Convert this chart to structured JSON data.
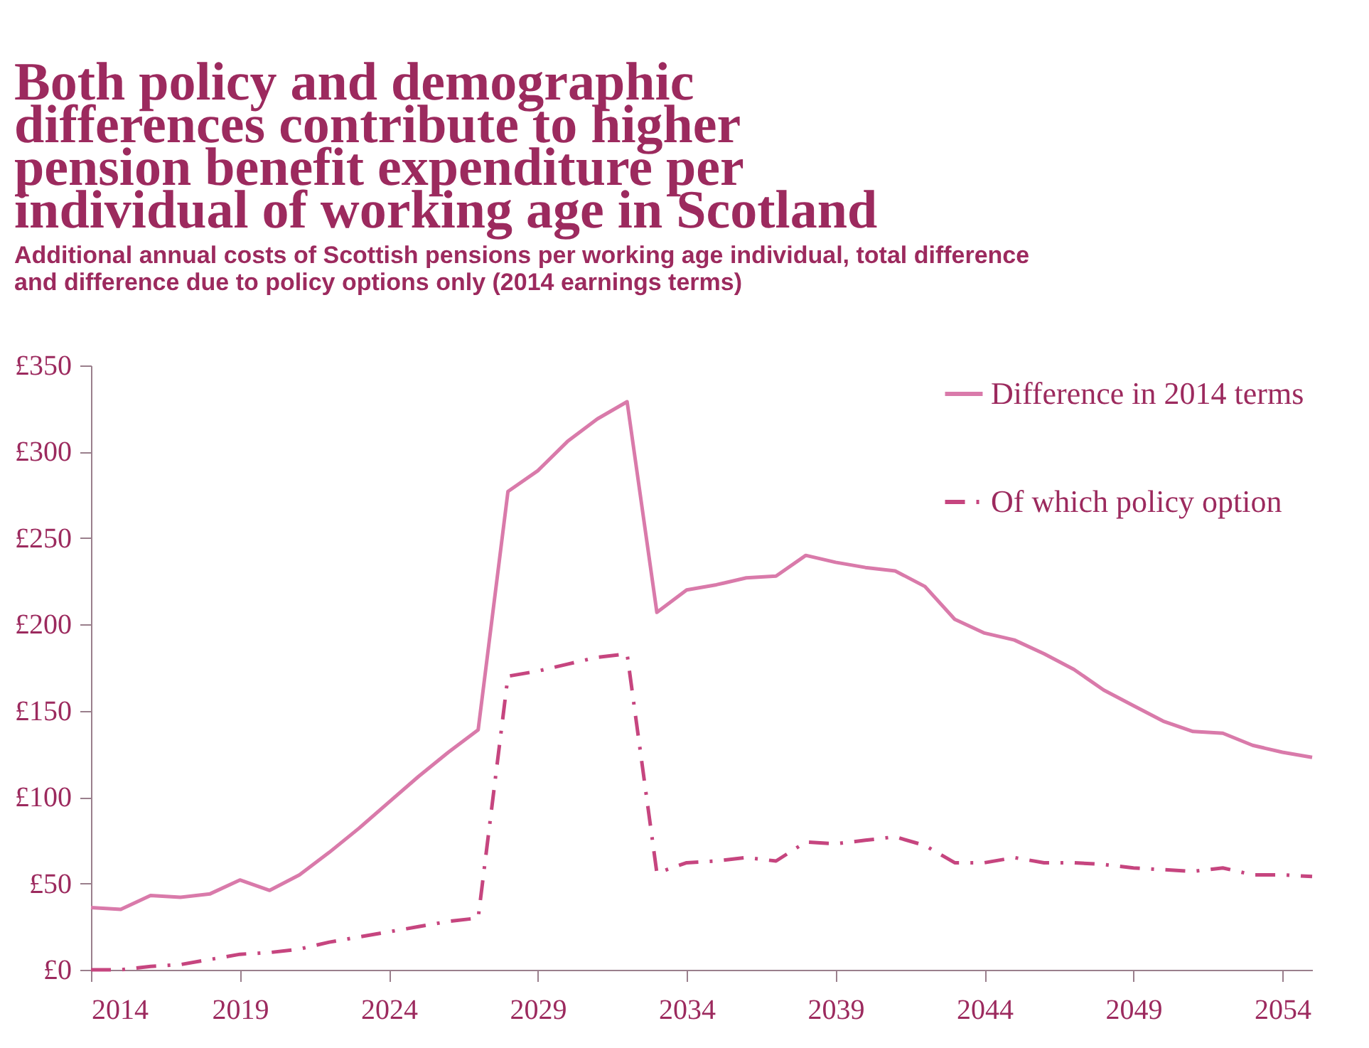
{
  "chart_data": {
    "type": "line",
    "title": "Both policy and demographic\ndifferences contribute to higher\npension benefit expenditure per\nindividual of working age in Scotland",
    "subtitle": "Additional annual costs of Scottish pensions per working age individual, total difference\nand difference due to policy options only (2014 earnings terms)",
    "x": [
      2014,
      2015,
      2016,
      2017,
      2018,
      2019,
      2020,
      2021,
      2022,
      2023,
      2024,
      2025,
      2026,
      2027,
      2028,
      2029,
      2030,
      2031,
      2032,
      2033,
      2034,
      2035,
      2036,
      2037,
      2038,
      2039,
      2040,
      2041,
      2042,
      2043,
      2044,
      2045,
      2046,
      2047,
      2048,
      2049,
      2050,
      2051,
      2052,
      2053,
      2054,
      2055
    ],
    "series": [
      {
        "name": "Difference in 2014 terms",
        "color": "#d97aaa",
        "line_style": "solid",
        "values": [
          36,
          35,
          43,
          42,
          44,
          52,
          46,
          55,
          68,
          82,
          97,
          112,
          126,
          139,
          277,
          289,
          306,
          319,
          329,
          207,
          220,
          223,
          227,
          228,
          240,
          236,
          233,
          231,
          222,
          203,
          195,
          191,
          183,
          174,
          162,
          153,
          144,
          138,
          137,
          130,
          126,
          123
        ]
      },
      {
        "name": "Of which policy option",
        "color": "#c6457f",
        "line_style": "dashdot",
        "values": [
          0,
          0,
          2,
          3,
          6,
          9,
          10,
          12,
          16,
          19,
          22,
          25,
          28,
          30,
          170,
          173,
          177,
          181,
          183,
          56,
          62,
          63,
          65,
          63,
          74,
          73,
          75,
          77,
          72,
          62,
          62,
          65,
          62,
          62,
          61,
          59,
          58,
          57,
          59,
          55,
          55,
          54
        ]
      }
    ],
    "xlim": [
      2014,
      2055
    ],
    "xticks": [
      2014,
      2019,
      2024,
      2029,
      2034,
      2039,
      2044,
      2049,
      2054
    ],
    "ylim": [
      0,
      350
    ],
    "yticks": [
      {
        "value": 0,
        "label": "£0"
      },
      {
        "value": 50,
        "label": "£50"
      },
      {
        "value": 100,
        "label": "£100"
      },
      {
        "value": 150,
        "label": "£150"
      },
      {
        "value": 200,
        "label": "£200"
      },
      {
        "value": 250,
        "label": "£250"
      },
      {
        "value": 300,
        "label": "£300"
      },
      {
        "value": 350,
        "label": "£350"
      }
    ],
    "grid": false,
    "legend": "top right",
    "marker": "none"
  }
}
